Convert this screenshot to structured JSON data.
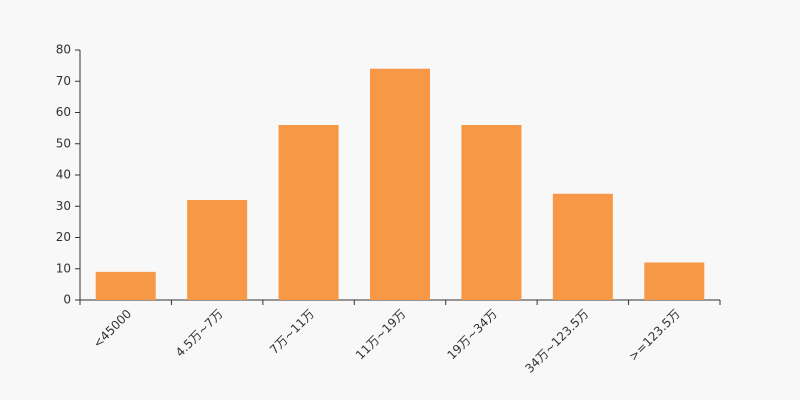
{
  "chart_data": {
    "type": "bar",
    "categories": [
      "<45000",
      "4.5万~7万",
      "7万~11万",
      "11万~19万",
      "19万~34万",
      "34万~123.5万",
      ">=123.5万"
    ],
    "values": [
      9,
      32,
      56,
      74,
      56,
      34,
      12
    ],
    "color": "#f79846",
    "ylim": [
      0,
      80
    ],
    "yticks": [
      0,
      10,
      20,
      30,
      40,
      50,
      60,
      70,
      80
    ],
    "grid": false
  }
}
